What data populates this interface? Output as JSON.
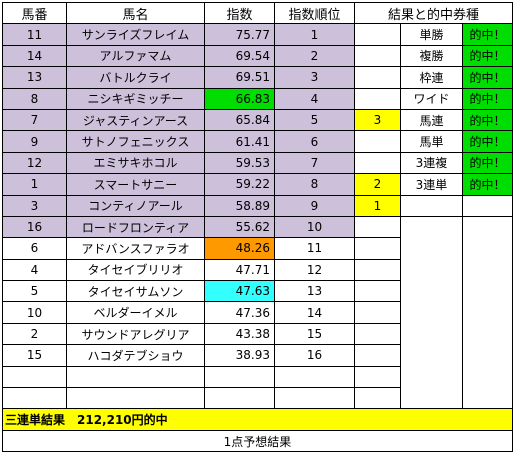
{
  "headers": {
    "horse_no": "馬番",
    "horse_name": "馬名",
    "index": "指数",
    "index_rank": "指数順位",
    "result": "結果と的中券種"
  },
  "rows": [
    {
      "no": "11",
      "name": "サンライズフレイム",
      "index": "75.77",
      "rank": "1",
      "finish": "",
      "bet": "単勝",
      "hit": "的中！"
    },
    {
      "no": "14",
      "name": "アルファマム",
      "index": "69.54",
      "rank": "2",
      "finish": "",
      "bet": "複勝",
      "hit": "的中！"
    },
    {
      "no": "13",
      "name": "バトルクライ",
      "index": "69.51",
      "rank": "3",
      "finish": "",
      "bet": "枠連",
      "hit": "的中！"
    },
    {
      "no": "8",
      "name": "ニシキギミッチー",
      "index": "66.83",
      "rank": "4",
      "finish": "",
      "bet": "ワイド",
      "hit": "的中！"
    },
    {
      "no": "7",
      "name": "ジャスティンアース",
      "index": "65.84",
      "rank": "5",
      "finish": "3",
      "bet": "馬連",
      "hit": "的中！"
    },
    {
      "no": "9",
      "name": "サトノフェニックス",
      "index": "61.41",
      "rank": "6",
      "finish": "",
      "bet": "馬単",
      "hit": "的中！"
    },
    {
      "no": "12",
      "name": "エミサキホコル",
      "index": "59.53",
      "rank": "7",
      "finish": "",
      "bet": "3連複",
      "hit": "的中！"
    },
    {
      "no": "1",
      "name": "スマートサニー",
      "index": "59.22",
      "rank": "8",
      "finish": "2",
      "bet": "3連単",
      "hit": "的中！"
    },
    {
      "no": "3",
      "name": "コンティノアール",
      "index": "58.89",
      "rank": "9",
      "finish": "1",
      "bet": "",
      "hit": ""
    },
    {
      "no": "16",
      "name": "ロードフロンティア",
      "index": "55.62",
      "rank": "10",
      "finish": "",
      "bet": "",
      "hit": ""
    },
    {
      "no": "6",
      "name": "アドバンスファラオ",
      "index": "48.26",
      "rank": "11",
      "finish": "",
      "bet": "",
      "hit": ""
    },
    {
      "no": "4",
      "name": "タイセイブリリオ",
      "index": "47.71",
      "rank": "12",
      "finish": "",
      "bet": "",
      "hit": ""
    },
    {
      "no": "5",
      "name": "タイセイサムソン",
      "index": "47.63",
      "rank": "13",
      "finish": "",
      "bet": "",
      "hit": ""
    },
    {
      "no": "10",
      "name": "ベルダーイメル",
      "index": "47.36",
      "rank": "14",
      "finish": "",
      "bet": "",
      "hit": ""
    },
    {
      "no": "2",
      "name": "サウンドアレグリア",
      "index": "43.38",
      "rank": "15",
      "finish": "",
      "bet": "",
      "hit": ""
    },
    {
      "no": "15",
      "name": "ハコダテブショウ",
      "index": "38.93",
      "rank": "16",
      "finish": "",
      "bet": "",
      "hit": ""
    },
    {
      "no": "",
      "name": "",
      "index": "",
      "rank": "",
      "finish": "",
      "bet": "",
      "hit": ""
    },
    {
      "no": "",
      "name": "",
      "index": "",
      "rank": "",
      "finish": "",
      "bet": "",
      "hit": ""
    }
  ],
  "summary": "三連単結果　212,210円的中",
  "footer": "1点予想結果",
  "colors": {
    "top_rank_bg": "#ccc0da",
    "hit_bg": "#00dd00",
    "finish_bg": "#ffff00",
    "summary_bg": "#ffff00",
    "orange_highlight": "#ff9900",
    "cyan_highlight": "#33ffff"
  }
}
